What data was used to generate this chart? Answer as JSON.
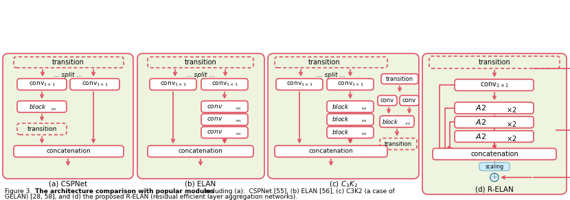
{
  "fig_width": 8.3,
  "fig_height": 2.92,
  "bg_color": "#f0f5e8",
  "box_bg": "#ffffff",
  "box_edge_solid": "#e05060",
  "box_edge_dashed": "#e05060",
  "arrow_color": "#e05060",
  "text_color": "#000000",
  "caption": "Figure 3.  The architecture comparison with popular modules including (a):  CSPNet [55], (b) ELAN [56], (c) C3K2 (a case of\nGELAN) [28, 58], and (d) the proposed R-ELAN (residual efficient layer aggregation networks).",
  "labels": [
    "(a) CSPNet",
    "(b) ELAN",
    "(c) C₃K₂",
    "(d) R-ELAN"
  ],
  "panel_bg": "#eef4e0"
}
